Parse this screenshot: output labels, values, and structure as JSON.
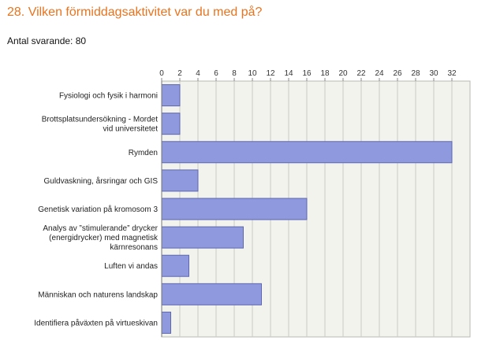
{
  "question": {
    "title": "28. Vilken förmiddagsaktivitet var du med på?",
    "responses": "Antal svarande: 80"
  },
  "colors": {
    "title": "#e8741f",
    "bar_fill": "#8f99dd",
    "bar_stroke": "#5f67b0",
    "plot_bg": "#f1f3ec",
    "grid": "#c9cbc4"
  },
  "chart_data": {
    "type": "bar",
    "orientation": "horizontal",
    "categories": [
      [
        "Fysiologi och fysik i harmoni"
      ],
      [
        "Brottsplatsundersökning - Mordet",
        "vid universitetet"
      ],
      [
        "Rymden"
      ],
      [
        "Guldvaskning, årsringar och GIS"
      ],
      [
        "Genetisk variation på kromosom 3"
      ],
      [
        "Analys av ”stimulerande” drycker",
        "(energidrycker) med magnetisk",
        "kärnresonans"
      ],
      [
        "Luften vi andas"
      ],
      [
        "Människan och naturens landskap"
      ],
      [
        "Identifiera påväxten på virtueskivan"
      ]
    ],
    "values": [
      2,
      2,
      32,
      4,
      16,
      9,
      3,
      11,
      1
    ],
    "xlim": [
      0,
      34
    ],
    "xticks": [
      0,
      2,
      4,
      6,
      8,
      10,
      12,
      14,
      16,
      18,
      20,
      22,
      24,
      26,
      28,
      30,
      32
    ],
    "axis_position": "top",
    "grid": true
  }
}
